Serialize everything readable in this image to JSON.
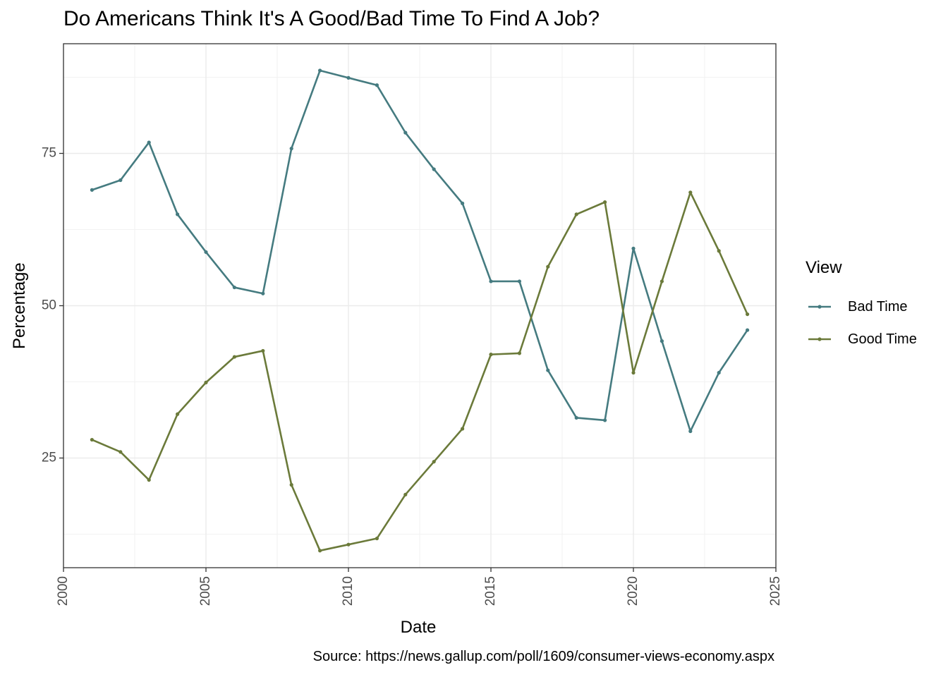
{
  "chart_data": {
    "type": "line",
    "title": "Do Americans Think It's A Good/Bad Time To Find A Job?",
    "xlabel": "Date",
    "ylabel": "Percentage",
    "caption": "Source: https://news.gallup.com/poll/1609/consumer-views-economy.aspx",
    "legend_title": "View",
    "legend_position": "right",
    "grid": true,
    "xlim": [
      2000,
      2025
    ],
    "ylim": [
      7,
      93
    ],
    "x_ticks": [
      2000,
      2005,
      2010,
      2015,
      2020,
      2025
    ],
    "y_ticks": [
      25,
      50,
      75
    ],
    "x": [
      2001,
      2002,
      2003,
      2004,
      2005,
      2006,
      2007,
      2008,
      2009,
      2010,
      2011,
      2012,
      2013,
      2014,
      2015,
      2016,
      2017,
      2018,
      2019,
      2020,
      2021,
      2022,
      2023,
      2024
    ],
    "series": [
      {
        "name": "Bad Time",
        "color": "#457b80",
        "values": [
          69,
          70.6,
          76.8,
          65,
          58.8,
          53,
          52,
          75.8,
          88.6,
          87.4,
          86.2,
          78.4,
          72.4,
          66.8,
          54,
          54,
          39.4,
          31.6,
          31.2,
          59.4,
          44.2,
          29.4,
          39,
          46
        ]
      },
      {
        "name": "Good Time",
        "color": "#6b7a3a",
        "values": [
          28,
          26,
          21.4,
          32.2,
          37.4,
          41.6,
          42.6,
          20.6,
          9.8,
          10.8,
          11.8,
          19,
          24.4,
          29.8,
          42,
          42.2,
          56.4,
          65,
          67,
          39,
          54,
          68.6,
          59,
          48.6
        ]
      }
    ]
  }
}
